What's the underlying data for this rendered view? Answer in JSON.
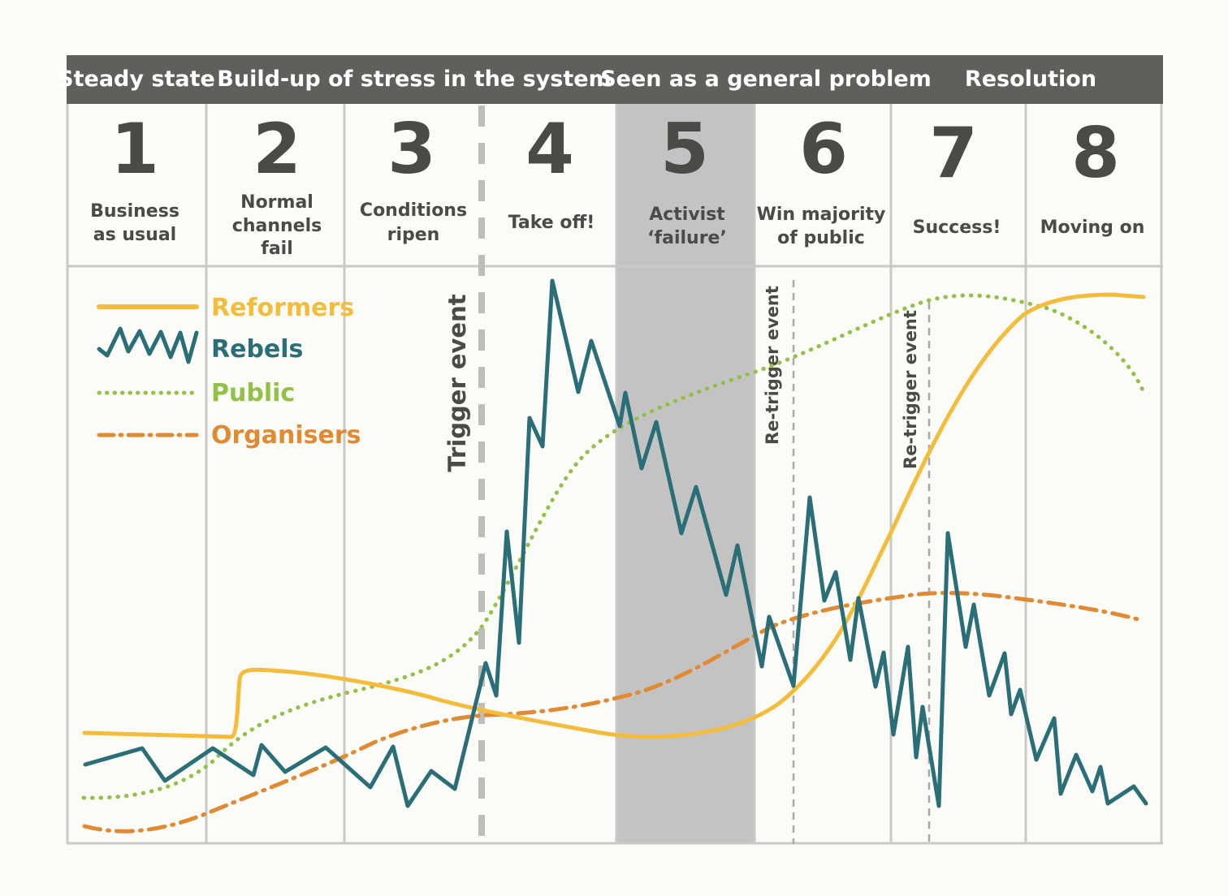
{
  "phases": [
    {
      "label": "Steady state"
    },
    {
      "label": "Build-up of stress in the system"
    },
    {
      "label": "Seen as a general problem"
    },
    {
      "label": "Resolution"
    }
  ],
  "stages": [
    {
      "number": "1",
      "lines": [
        "Business",
        "as usual"
      ]
    },
    {
      "number": "2",
      "lines": [
        "Normal",
        "channels",
        "fail"
      ]
    },
    {
      "number": "3",
      "lines": [
        "Conditions",
        "ripen"
      ]
    },
    {
      "number": "4",
      "lines": [
        "Take off!"
      ]
    },
    {
      "number": "5",
      "lines": [
        "Activist",
        "‘failure’"
      ],
      "highlighted": true
    },
    {
      "number": "6",
      "lines": [
        "Win majority",
        "of public"
      ]
    },
    {
      "number": "7",
      "lines": [
        "Success!"
      ]
    },
    {
      "number": "8",
      "lines": [
        "Moving on"
      ]
    }
  ],
  "events": {
    "trigger": "Trigger event",
    "retrigger_1": "Re-trigger event",
    "retrigger_2": "Re-trigger event"
  },
  "legend": [
    {
      "name": "Reformers",
      "style": "solid",
      "color": "#f3bd3b"
    },
    {
      "name": "Rebels",
      "style": "zigzag",
      "color": "#2a6e77"
    },
    {
      "name": "Public",
      "style": "dotted",
      "color": "#93c047"
    },
    {
      "name": "Organisers",
      "style": "dash-dot",
      "color": "#e08a33"
    }
  ],
  "colors": {
    "header_bg": "#5f605b",
    "header_text": "#ffffff",
    "grid": "#c9c9c7",
    "number_text": "#4a4a47",
    "stage_text": "#4a4a47",
    "stage5_fill": "#c4c3c4",
    "trigger_dash": "#bdbdbd",
    "retrigger_dash": "#a9a9a9"
  }
}
